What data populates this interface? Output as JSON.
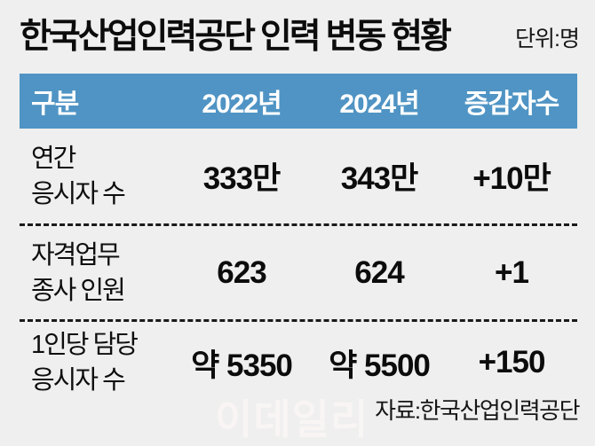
{
  "header": {
    "title": "한국산업인력공단 인력 변동 현황",
    "unit": "단위:명"
  },
  "footer": {
    "watermark": "이데일리",
    "source": "자료:한국산업인력공단"
  },
  "colors": {
    "background": "#efefef",
    "table_header_bg": "#4f94c4",
    "table_header_text": "#ffffff",
    "body_text": "#0e0e0e",
    "watermark_text": "#f9f5f4"
  },
  "chart_data": {
    "type": "table",
    "title": "한국산업인력공단 인력 변동 현황",
    "unit": "단위:명",
    "columns": [
      "구분",
      "2022년",
      "2024년",
      "증감자수"
    ],
    "rows": [
      {
        "category": [
          "연간",
          "응시자 수"
        ],
        "y2022": "333만",
        "y2024": "343만",
        "change": "+10만"
      },
      {
        "category": [
          "자격업무",
          "종사 인원"
        ],
        "y2022": "623",
        "y2024": "624",
        "change": "+1"
      },
      {
        "category": [
          "1인당 담당",
          "응시자 수"
        ],
        "y2022": "약 5350",
        "y2024": "약 5500",
        "change": "+150"
      }
    ],
    "source": "자료:한국산업인력공단",
    "layout": "infographic table, blue header band, dashed row separators"
  }
}
